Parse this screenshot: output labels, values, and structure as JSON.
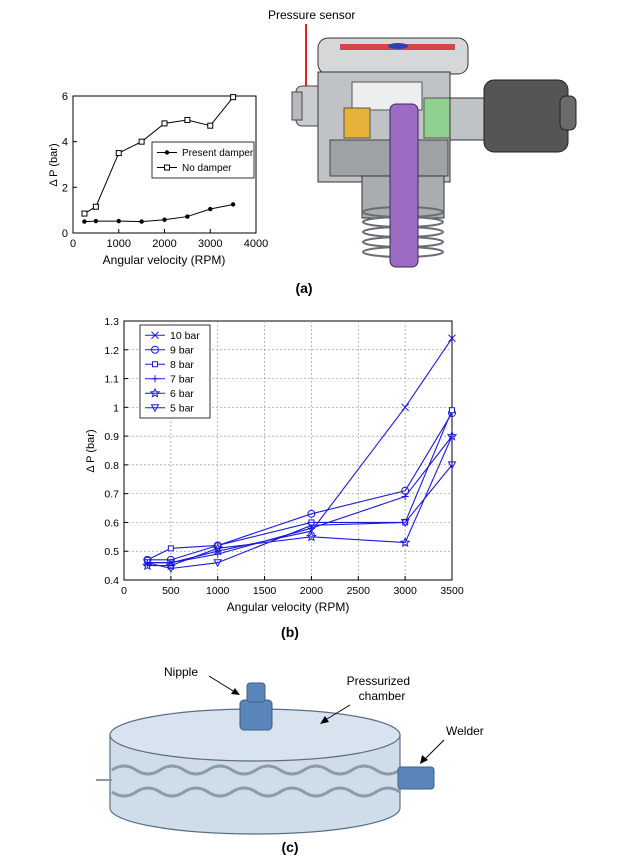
{
  "panels": {
    "a": {
      "label": "(a)"
    },
    "b": {
      "label": "(b)"
    },
    "c": {
      "label": "(c)"
    }
  },
  "pump_diagram": {
    "callout": "Pressure sensor",
    "colors": {
      "arrow": "#e8231f",
      "plunger": "#9b6cc2",
      "body": "#bfc3c6",
      "motor": "#555555"
    }
  },
  "chamber_diagram": {
    "labels": {
      "nipple": "Nipple",
      "chamber": "Pressurized\nchamber",
      "welder": "Welder"
    },
    "colors": {
      "fill": "#cfdcea",
      "stroke": "#5a6f86",
      "part": "#5b86bb"
    }
  },
  "chart_data": [
    {
      "type": "line",
      "panel": "a",
      "xlabel": "Angular velocity (RPM)",
      "ylabel": "Δ P (bar)",
      "xlim": [
        0,
        4000
      ],
      "ylim": [
        0,
        6
      ],
      "xticks": [
        0,
        1000,
        2000,
        3000,
        4000
      ],
      "yticks": [
        0,
        2,
        4,
        6
      ],
      "grid": false,
      "legend_position": "right",
      "series": [
        {
          "name": "Present damper",
          "marker": "dot",
          "x": [
            250,
            500,
            1000,
            1500,
            2000,
            2500,
            3000,
            3500
          ],
          "y": [
            0.5,
            0.52,
            0.52,
            0.5,
            0.58,
            0.72,
            1.05,
            1.25
          ]
        },
        {
          "name": "No damper",
          "marker": "square",
          "x": [
            250,
            500,
            1000,
            1500,
            2000,
            2500,
            3000,
            3500
          ],
          "y": [
            0.85,
            1.15,
            3.5,
            4.0,
            4.8,
            4.95,
            4.7,
            5.95
          ]
        }
      ]
    },
    {
      "type": "line",
      "panel": "b",
      "xlabel": "Angular velocity (RPM)",
      "ylabel": "Δ P (bar)",
      "xlim": [
        0,
        3500
      ],
      "ylim": [
        0.4,
        1.3
      ],
      "xticks": [
        0,
        500,
        1000,
        1500,
        2000,
        2500,
        3000,
        3500
      ],
      "yticks": [
        0.4,
        0.5,
        0.6,
        0.7,
        0.8,
        0.9,
        1,
        1.1,
        1.2,
        1.3
      ],
      "grid": true,
      "legend_position": "top-left",
      "color": "#1a1adc",
      "series": [
        {
          "name": "10 bar",
          "marker": "x",
          "x": [
            250,
            500,
            1000,
            2000,
            3000,
            3500
          ],
          "y": [
            0.46,
            0.46,
            0.5,
            0.57,
            1.0,
            1.24
          ]
        },
        {
          "name": "9 bar",
          "marker": "circle",
          "x": [
            250,
            500,
            1000,
            2000,
            3000,
            3500
          ],
          "y": [
            0.47,
            0.47,
            0.52,
            0.63,
            0.71,
            0.98
          ]
        },
        {
          "name": "8 bar",
          "marker": "square",
          "x": [
            250,
            500,
            1000,
            2000,
            3000,
            3500
          ],
          "y": [
            0.47,
            0.51,
            0.52,
            0.6,
            0.6,
            0.99
          ]
        },
        {
          "name": "7 bar",
          "marker": "plus",
          "x": [
            250,
            500,
            1000,
            2000,
            3000,
            3500
          ],
          "y": [
            0.46,
            0.46,
            0.49,
            0.58,
            0.69,
            0.9
          ]
        },
        {
          "name": "6 bar",
          "marker": "star",
          "x": [
            250,
            500,
            1000,
            2000,
            3000,
            3500
          ],
          "y": [
            0.45,
            0.45,
            0.51,
            0.55,
            0.53,
            0.9
          ]
        },
        {
          "name": "5 bar",
          "marker": "triangle-down",
          "x": [
            250,
            500,
            1000,
            2000,
            3000,
            3500
          ],
          "y": [
            0.46,
            0.44,
            0.46,
            0.59,
            0.6,
            0.8
          ]
        }
      ]
    }
  ]
}
